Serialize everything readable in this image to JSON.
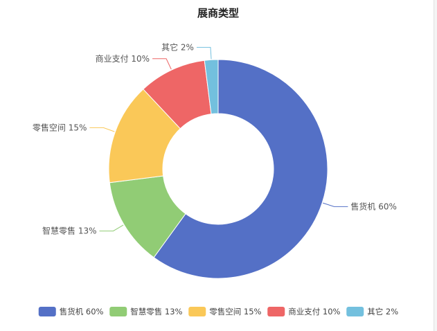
{
  "chart_data": {
    "type": "pie",
    "title": "展商类型",
    "series": [
      {
        "label": "售货机 60%",
        "value": 60,
        "color": "#5470c6"
      },
      {
        "label": "智慧零售 13%",
        "value": 13,
        "color": "#91cc75"
      },
      {
        "label": "零售空间 15%",
        "value": 15,
        "color": "#fac858"
      },
      {
        "label": "商业支付 10%",
        "value": 10,
        "color": "#ee6666"
      },
      {
        "label": "其它 2%",
        "value": 2,
        "color": "#73c0de"
      }
    ],
    "legend_position": "bottom"
  }
}
